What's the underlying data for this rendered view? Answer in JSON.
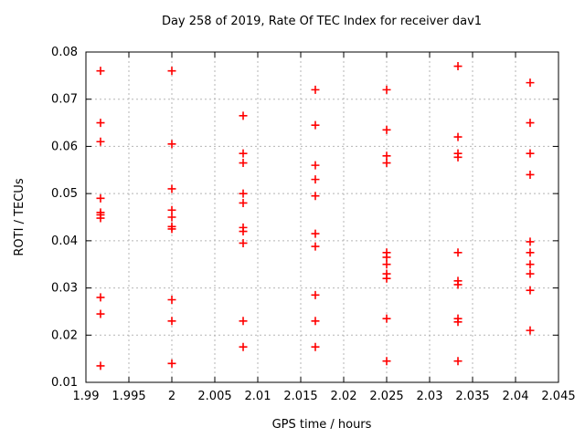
{
  "chart_data": {
    "type": "scatter",
    "title": "Day 258 of 2019, Rate Of TEC Index for receiver dav1",
    "xlabel": "GPS time / hours",
    "ylabel": "ROTI / TECUs",
    "xlim": [
      1.99,
      2.045
    ],
    "ylim": [
      0.01,
      0.08
    ],
    "xticks": [
      1.99,
      1.995,
      2,
      2.005,
      2.01,
      2.015,
      2.02,
      2.025,
      2.03,
      2.035,
      2.04,
      2.045
    ],
    "xtick_labels": [
      "1.99",
      "1.995",
      "2",
      "2.005",
      "2.01",
      "2.015",
      "2.02",
      "2.025",
      "2.03",
      "2.035",
      "2.04",
      "2.045"
    ],
    "yticks": [
      0.01,
      0.02,
      0.03,
      0.04,
      0.05,
      0.06,
      0.07,
      0.08
    ],
    "ytick_labels": [
      "0.01",
      "0.02",
      "0.03",
      "0.04",
      "0.05",
      "0.06",
      "0.07",
      "0.08"
    ],
    "grid": true,
    "legend": "none",
    "marker": "plus",
    "marker_color": "#ff0000",
    "grid_color": "#b5b5b5",
    "frame_color": "#000000",
    "series": [
      {
        "name": "ROTI",
        "points": [
          [
            1.9917,
            0.076
          ],
          [
            1.9917,
            0.065
          ],
          [
            1.9917,
            0.061
          ],
          [
            1.9917,
            0.049
          ],
          [
            1.9917,
            0.046
          ],
          [
            1.9917,
            0.0455
          ],
          [
            1.9917,
            0.0448
          ],
          [
            1.9917,
            0.028
          ],
          [
            1.9917,
            0.0245
          ],
          [
            1.9917,
            0.0135
          ],
          [
            2.0,
            0.076
          ],
          [
            2.0,
            0.0605
          ],
          [
            2.0,
            0.051
          ],
          [
            2.0,
            0.0465
          ],
          [
            2.0,
            0.045
          ],
          [
            2.0,
            0.043
          ],
          [
            2.0,
            0.0425
          ],
          [
            2.0,
            0.0275
          ],
          [
            2.0,
            0.023
          ],
          [
            2.0,
            0.014
          ],
          [
            2.0083,
            0.0665
          ],
          [
            2.0083,
            0.0585
          ],
          [
            2.0083,
            0.0565
          ],
          [
            2.0083,
            0.05
          ],
          [
            2.0083,
            0.048
          ],
          [
            2.0083,
            0.0428
          ],
          [
            2.0083,
            0.042
          ],
          [
            2.0083,
            0.0395
          ],
          [
            2.0083,
            0.023
          ],
          [
            2.0083,
            0.0175
          ],
          [
            2.0167,
            0.072
          ],
          [
            2.0167,
            0.0645
          ],
          [
            2.0167,
            0.056
          ],
          [
            2.0167,
            0.053
          ],
          [
            2.0167,
            0.0495
          ],
          [
            2.0167,
            0.0415
          ],
          [
            2.0167,
            0.0388
          ],
          [
            2.0167,
            0.0285
          ],
          [
            2.0167,
            0.023
          ],
          [
            2.0167,
            0.0175
          ],
          [
            2.025,
            0.072
          ],
          [
            2.025,
            0.0635
          ],
          [
            2.025,
            0.058
          ],
          [
            2.025,
            0.0565
          ],
          [
            2.025,
            0.0375
          ],
          [
            2.025,
            0.0365
          ],
          [
            2.025,
            0.035
          ],
          [
            2.025,
            0.033
          ],
          [
            2.025,
            0.032
          ],
          [
            2.025,
            0.0235
          ],
          [
            2.025,
            0.0145
          ],
          [
            2.0333,
            0.077
          ],
          [
            2.0333,
            0.062
          ],
          [
            2.0333,
            0.0585
          ],
          [
            2.0333,
            0.0577
          ],
          [
            2.0333,
            0.0375
          ],
          [
            2.0333,
            0.0315
          ],
          [
            2.0333,
            0.0307
          ],
          [
            2.0333,
            0.0235
          ],
          [
            2.0333,
            0.0228
          ],
          [
            2.0333,
            0.0145
          ],
          [
            2.0417,
            0.0735
          ],
          [
            2.0417,
            0.065
          ],
          [
            2.0417,
            0.0585
          ],
          [
            2.0417,
            0.054
          ],
          [
            2.0417,
            0.0398
          ],
          [
            2.0417,
            0.0375
          ],
          [
            2.0417,
            0.035
          ],
          [
            2.0417,
            0.033
          ],
          [
            2.0417,
            0.0295
          ],
          [
            2.0417,
            0.021
          ]
        ]
      }
    ]
  }
}
